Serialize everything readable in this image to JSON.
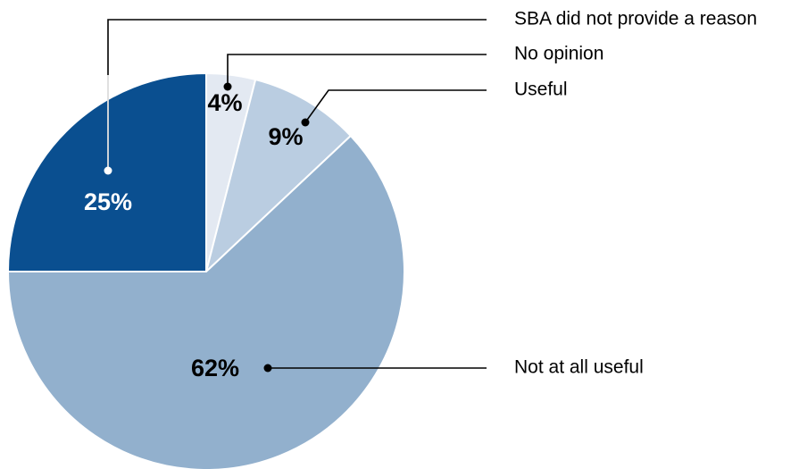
{
  "chart_data": {
    "type": "pie",
    "title": "",
    "slices": [
      {
        "label": "SBA did not provide a reason",
        "value": 25,
        "display": "25%",
        "color": "#0a4f90",
        "label_color": "#ffffff",
        "leader_color": "#ffffff"
      },
      {
        "label": "No opinion",
        "value": 4,
        "display": "4%",
        "color": "#e3e9f2",
        "label_color": "#000000",
        "leader_color": "#000000"
      },
      {
        "label": "Useful",
        "value": 9,
        "display": "9%",
        "color": "#bacde1",
        "label_color": "#000000",
        "leader_color": "#000000"
      },
      {
        "label": "Not at all useful",
        "value": 62,
        "display": "62%",
        "color": "#92b0cd",
        "label_color": "#000000",
        "leader_color": "#000000"
      }
    ],
    "start_angle_deg": -90,
    "direction": "clockwise_from_top_for_non_first",
    "legend": "right, with leader lines"
  }
}
